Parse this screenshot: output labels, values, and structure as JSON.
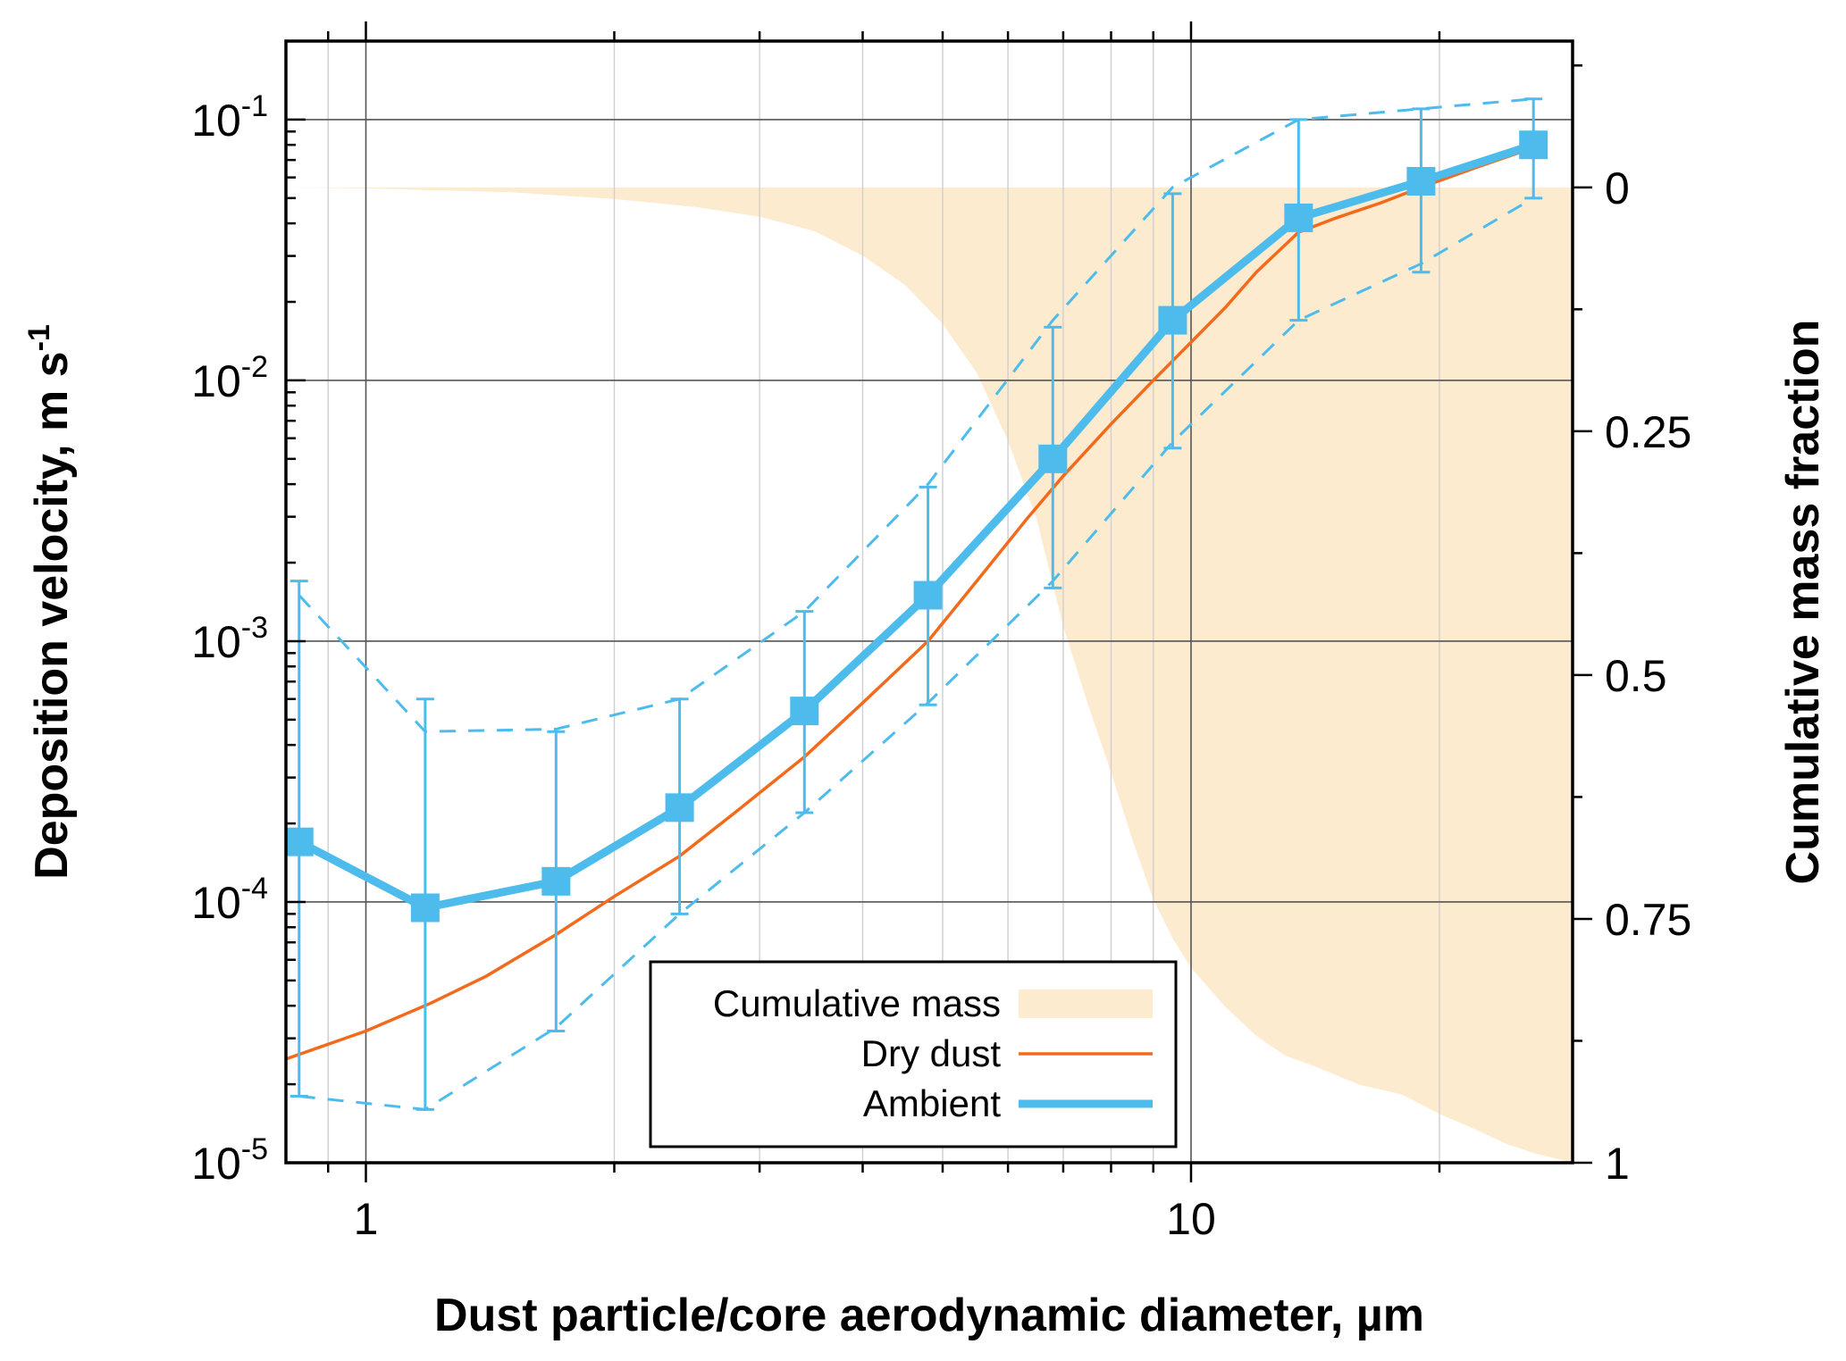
{
  "chart_data": {
    "type": "line",
    "xlabel": "Dust particle/core aerodynamic diameter, µm",
    "ylabel": "Deposition velocity, m s",
    "ylabel_sup": "-1",
    "y2label": "Cumulative mass fraction",
    "x_scale": "log",
    "y_scale": "log",
    "xlim": [
      0.8,
      29
    ],
    "ylim": [
      1e-05,
      0.2
    ],
    "y2lim": [
      -0.15,
      1
    ],
    "y2_inverted": true,
    "grid": true,
    "legend_position": "bottom-center",
    "x_ticks": [
      {
        "value": 1,
        "label": "1"
      },
      {
        "value": 10,
        "label": "10"
      }
    ],
    "y_ticks": [
      {
        "value": 0.1,
        "base": "10",
        "exp": "-1"
      },
      {
        "value": 0.01,
        "base": "10",
        "exp": "-2"
      },
      {
        "value": 0.001,
        "base": "10",
        "exp": "-3"
      },
      {
        "value": 0.0001,
        "base": "10",
        "exp": "-4"
      },
      {
        "value": 1e-05,
        "base": "10",
        "exp": "-5"
      }
    ],
    "y2_ticks": [
      {
        "value": 0,
        "label": "0"
      },
      {
        "value": 0.25,
        "label": "0.25"
      },
      {
        "value": 0.5,
        "label": "0.5"
      },
      {
        "value": 0.75,
        "label": "0.75"
      },
      {
        "value": 1,
        "label": "1"
      }
    ],
    "series": [
      {
        "name": "Cumulative mass",
        "kind": "area",
        "axis": "y2",
        "color": "#fdebcf",
        "x": [
          0.8,
          1.0,
          1.5,
          2.0,
          2.5,
          3.0,
          3.5,
          4.0,
          4.5,
          5.0,
          5.5,
          6.0,
          6.5,
          7.0,
          7.5,
          8.0,
          8.5,
          9.0,
          9.5,
          10.0,
          11.0,
          12.0,
          13.0,
          14.0,
          16.0,
          18.0,
          20.0,
          22.0,
          24.0,
          26.0,
          29.0
        ],
        "y": [
          0.0,
          0.001,
          0.005,
          0.012,
          0.02,
          0.03,
          0.045,
          0.07,
          0.1,
          0.14,
          0.19,
          0.26,
          0.34,
          0.45,
          0.53,
          0.6,
          0.67,
          0.73,
          0.77,
          0.8,
          0.84,
          0.87,
          0.89,
          0.9,
          0.92,
          0.93,
          0.95,
          0.965,
          0.98,
          0.99,
          1.0
        ]
      },
      {
        "name": "Dry dust",
        "kind": "line",
        "axis": "y",
        "color": "#f26b1d",
        "x": [
          0.8,
          1.0,
          1.2,
          1.4,
          1.7,
          2.0,
          2.4,
          2.8,
          3.4,
          4.0,
          4.8,
          5.5,
          6.3,
          7.0,
          8.0,
          9.0,
          10.0,
          11.0,
          12.0,
          13.5,
          15.0,
          17.0,
          19.0,
          22.0,
          26.0
        ],
        "y": [
          2.5e-05,
          3.2e-05,
          4.1e-05,
          5.2e-05,
          7.5e-05,
          0.000105,
          0.00015,
          0.00022,
          0.00036,
          0.00058,
          0.001,
          0.0017,
          0.0029,
          0.0043,
          0.0068,
          0.01,
          0.014,
          0.019,
          0.026,
          0.037,
          0.042,
          0.048,
          0.055,
          0.065,
          0.078
        ]
      },
      {
        "name": "Ambient",
        "kind": "line",
        "axis": "y",
        "color": "#4dbcec",
        "x": [
          0.83,
          1.18,
          1.7,
          2.4,
          3.4,
          4.8,
          6.8,
          9.5,
          13.5,
          19.0,
          26.0
        ],
        "y": [
          0.00017,
          9.5e-05,
          0.00012,
          0.00023,
          0.00054,
          0.0015,
          0.005,
          0.017,
          0.042,
          0.058,
          0.08
        ],
        "err_upper": [
          0.0017,
          0.0006,
          0.00045,
          0.0006,
          0.0013,
          0.0039,
          0.016,
          0.052,
          0.1,
          0.11,
          0.12
        ],
        "err_lower": [
          1.8e-05,
          1.6e-05,
          3.2e-05,
          9e-05,
          0.00022,
          0.00057,
          0.0016,
          0.0055,
          0.017,
          0.026,
          0.05
        ],
        "dashed_upper": [
          0.0015,
          0.00045,
          0.00046,
          0.0006,
          0.0013,
          0.004,
          0.017,
          0.055,
          0.1,
          0.11,
          0.12
        ],
        "dashed_lower": [
          1.8e-05,
          1.6e-05,
          3.3e-05,
          9e-05,
          0.00022,
          0.00058,
          0.0017,
          0.0058,
          0.017,
          0.028,
          0.05
        ]
      }
    ]
  }
}
